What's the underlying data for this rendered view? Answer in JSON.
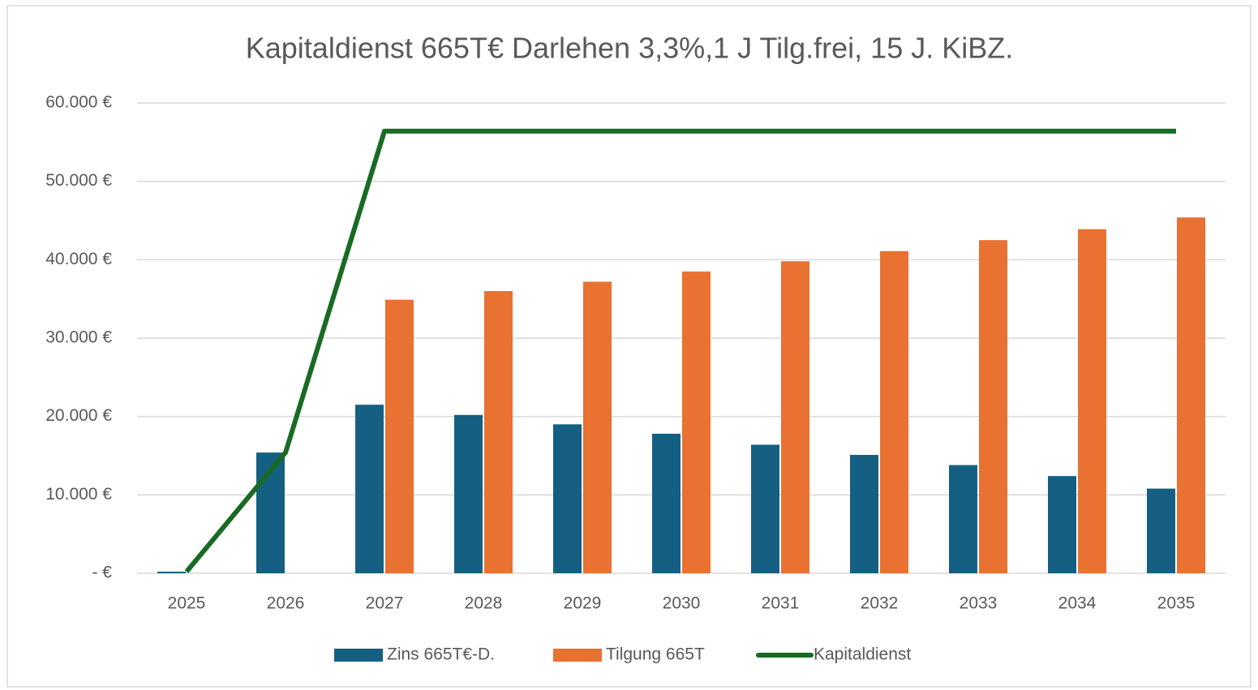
{
  "chart_data": {
    "type": "bar_line",
    "title": "Kapitaldienst 665T€ Darlehen 3,3%,1 J Tilg.frei, 15 J.  KiBZ.",
    "categories": [
      "2025",
      "2026",
      "2027",
      "2028",
      "2029",
      "2030",
      "2031",
      "2032",
      "2033",
      "2034",
      "2035"
    ],
    "series": [
      {
        "name": "Zins 665T€-D.",
        "type": "bar",
        "color": "#156082",
        "values": [
          200,
          15400,
          21500,
          20200,
          19000,
          17800,
          16400,
          15100,
          13800,
          12400,
          10800
        ]
      },
      {
        "name": "Tilgung 665T",
        "type": "bar",
        "color": "#e97132",
        "values": [
          0,
          0,
          34900,
          36000,
          37200,
          38500,
          39800,
          41100,
          42500,
          43900,
          45400
        ]
      },
      {
        "name": "Kapitaldienst",
        "type": "line",
        "color": "#196b24",
        "values": [
          200,
          15400,
          56400,
          56400,
          56400,
          56400,
          56400,
          56400,
          56400,
          56400,
          56400
        ]
      }
    ],
    "ylim": [
      0,
      60000
    ],
    "yticks": [
      {
        "value": 0,
        "label": "-  €"
      },
      {
        "value": 10000,
        "label": "10.000 €"
      },
      {
        "value": 20000,
        "label": "20.000 €"
      },
      {
        "value": 30000,
        "label": "30.000 €"
      },
      {
        "value": 40000,
        "label": "40.000 €"
      },
      {
        "value": 50000,
        "label": "50.000 €"
      },
      {
        "value": 60000,
        "label": "60.000 €"
      }
    ],
    "grid": true,
    "legend": "bottom"
  }
}
